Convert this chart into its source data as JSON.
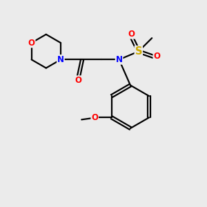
{
  "background_color": "#ebebeb",
  "bond_color": "#000000",
  "atom_colors": {
    "O": "#ff0000",
    "N": "#0000ff",
    "S": "#ccaa00",
    "C": "#000000"
  },
  "figsize": [
    3.0,
    3.0
  ],
  "dpi": 100
}
